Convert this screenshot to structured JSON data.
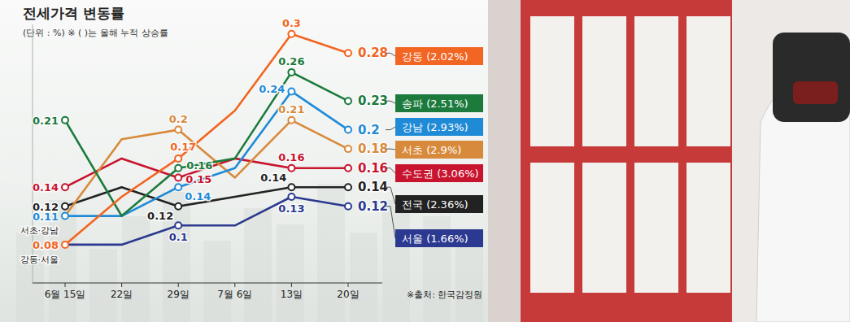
{
  "chart_data": {
    "type": "line",
    "title": "전세가격 변동률",
    "subtitle": "(단위 : %) ※ ( )는 올해 누적 상승률",
    "source": "※출처: 한국감정원",
    "categories": [
      "6월 15일",
      "22일",
      "29일",
      "7월 6일",
      "13일",
      "20일"
    ],
    "ylim": [
      0.04,
      0.31
    ],
    "tick_labels": "x",
    "marker": "circle",
    "data_labels": true,
    "annotations": [
      {
        "text": "서초·강남"
      },
      {
        "text": "강동·서울"
      }
    ],
    "series": [
      {
        "name": "강동 (2.02%)",
        "color": "#f26522",
        "values": [
          0.08,
          0.13,
          0.17,
          0.22,
          0.3,
          0.28
        ],
        "value_labels": [
          "0.08",
          null,
          "0.17",
          null,
          "0.3",
          "0.28"
        ]
      },
      {
        "name": "송파 (2.51%)",
        "color": "#1b7a3c",
        "values": [
          0.21,
          0.11,
          0.16,
          0.17,
          0.26,
          0.23
        ],
        "value_labels": [
          "0.21",
          null,
          "0.16",
          null,
          "0.26",
          "0.23"
        ]
      },
      {
        "name": "강남 (2.93%)",
        "color": "#1f8ad6",
        "values": [
          0.11,
          0.11,
          0.14,
          0.16,
          0.24,
          0.2
        ],
        "value_labels": [
          "0.11",
          null,
          "0.14",
          null,
          "0.24",
          "0.2"
        ]
      },
      {
        "name": "서초 (2.9%)",
        "color": "#d88a3c",
        "values": [
          0.11,
          0.19,
          0.2,
          0.15,
          0.21,
          0.18
        ],
        "value_labels": [
          null,
          null,
          "0.2",
          null,
          "0.21",
          "0.18"
        ]
      },
      {
        "name": "수도권 (3.06%)",
        "color": "#c8142e",
        "values": [
          0.14,
          0.17,
          0.15,
          0.17,
          0.16,
          0.16
        ],
        "value_labels": [
          "0.14",
          null,
          "0.15",
          null,
          "0.16",
          "0.16"
        ]
      },
      {
        "name": "전국 (2.36%)",
        "color": "#222222",
        "values": [
          0.12,
          0.14,
          0.12,
          0.13,
          0.14,
          0.14
        ],
        "value_labels": [
          "0.12",
          null,
          "0.12",
          null,
          "0.14",
          "0.14"
        ]
      },
      {
        "name": "서울 (1.66%)",
        "color": "#2b3990",
        "values": [
          0.08,
          0.08,
          0.1,
          0.1,
          0.13,
          0.12
        ],
        "value_labels": [
          null,
          null,
          "0.1",
          null,
          "0.13",
          "0.12"
        ]
      }
    ]
  }
}
